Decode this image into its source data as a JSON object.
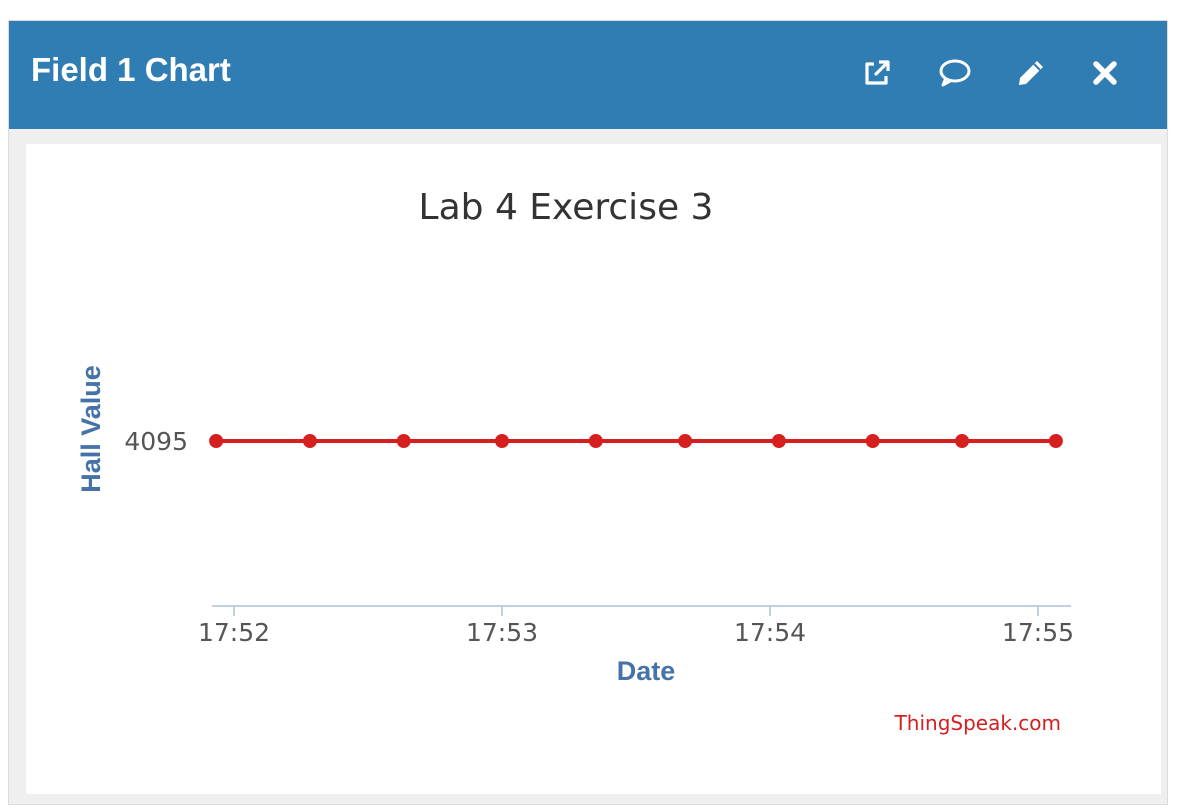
{
  "widget": {
    "title": "Field 1 Chart",
    "tools": [
      {
        "icon": "external-link-icon"
      },
      {
        "icon": "comment-icon"
      },
      {
        "icon": "pencil-icon"
      },
      {
        "icon": "close-icon"
      }
    ],
    "header_color": "#2f7db3"
  },
  "chart_data": {
    "type": "line",
    "title": "Lab 4 Exercise 3",
    "xlabel": "Date",
    "ylabel": "Hall Value",
    "x_ticks": [
      "17:52",
      "17:53",
      "17:54",
      "17:55"
    ],
    "y_ticks": [
      "4095"
    ],
    "series": [
      {
        "color": "#d62020",
        "points": [
          {
            "x": "17:51:56",
            "y": 4095
          },
          {
            "x": "17:52:17",
            "y": 4095
          },
          {
            "x": "17:52:38",
            "y": 4095
          },
          {
            "x": "17:53:00",
            "y": 4095
          },
          {
            "x": "17:53:21",
            "y": 4095
          },
          {
            "x": "17:53:41",
            "y": 4095
          },
          {
            "x": "17:54:02",
            "y": 4095
          },
          {
            "x": "17:54:23",
            "y": 4095
          },
          {
            "x": "17:54:43",
            "y": 4095
          },
          {
            "x": "17:55:04",
            "y": 4095
          }
        ]
      }
    ],
    "credit": "ThingSpeak.com",
    "grid": false,
    "legend": false
  }
}
